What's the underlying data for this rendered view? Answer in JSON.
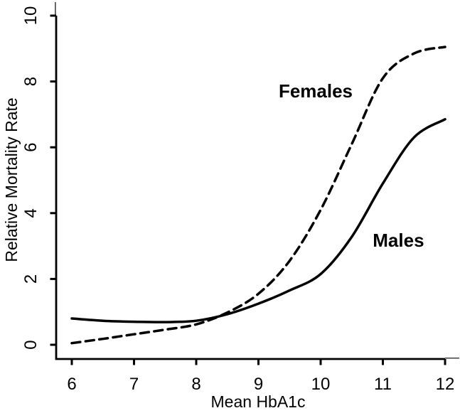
{
  "figure": {
    "background_color": "#ffffff",
    "ink_color": "#000000"
  },
  "chart_data": {
    "type": "line",
    "title": "",
    "xlabel": "Mean HbA1c",
    "ylabel": "Relative Mortality Rate",
    "xlim": [
      6,
      12
    ],
    "ylim": [
      0,
      10
    ],
    "x_ticks": [
      6,
      7,
      8,
      9,
      10,
      11,
      12
    ],
    "y_ticks": [
      0,
      2,
      4,
      6,
      8,
      10
    ],
    "grid": false,
    "legend_position": "inline-curve-labels",
    "x": [
      6,
      6.5,
      7,
      7.5,
      8,
      8.5,
      9,
      9.5,
      10,
      10.5,
      11,
      11.5,
      12
    ],
    "series": [
      {
        "name": "Females",
        "line_style": "dashed",
        "line_color": "#000000",
        "values": [
          0.05,
          0.18,
          0.32,
          0.46,
          0.62,
          0.98,
          1.55,
          2.55,
          4.1,
          6.1,
          8.1,
          8.85,
          9.05
        ],
        "label": {
          "text": "Females",
          "x": 9.92,
          "y": 7.71
        }
      },
      {
        "name": "Males",
        "line_style": "solid",
        "line_color": "#000000",
        "values": [
          0.8,
          0.73,
          0.7,
          0.69,
          0.73,
          0.93,
          1.25,
          1.65,
          2.15,
          3.28,
          4.9,
          6.3,
          6.85
        ],
        "label": {
          "text": "Males",
          "x": 11.25,
          "y": 3.17
        }
      }
    ]
  }
}
